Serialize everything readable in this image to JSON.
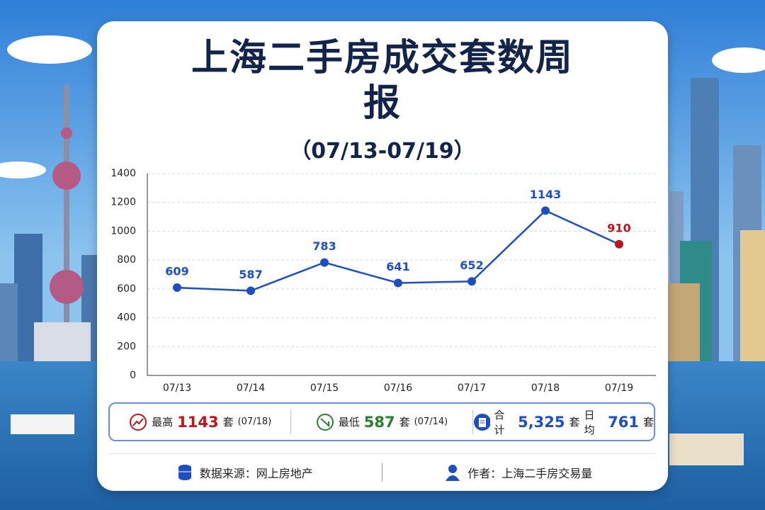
{
  "chart_data": {
    "type": "line",
    "title": "上海二手房成交套数周报",
    "subtitle": "（07/13-07/19）",
    "categories": [
      "07/13",
      "07/14",
      "07/15",
      "07/16",
      "07/17",
      "07/18",
      "07/19"
    ],
    "values": [
      609,
      587,
      783,
      641,
      652,
      1143,
      910
    ],
    "color": "#1f4fbf",
    "point_colors": [
      "#1f4fbf",
      "#1f4fbf",
      "#1f4fbf",
      "#1f4fbf",
      "#1f4fbf",
      "#1f4fbf",
      "#c0141c"
    ],
    "ylim": [
      0,
      1400
    ],
    "yticks": [
      0,
      200,
      400,
      600,
      800,
      1000,
      1200,
      1400
    ],
    "grid": true
  },
  "summary": [
    {
      "label": "最高",
      "value": "1143",
      "unit": "套",
      "note": "(07/18)",
      "color": "#c0141c"
    },
    {
      "label": "最低",
      "value": "587",
      "unit": "套",
      "note": "(07/14)",
      "color": "#2e7d32"
    },
    {
      "label": "合计",
      "value": "5,325",
      "unit": "套",
      "label2": "日均",
      "value2": "761",
      "unit2": "套",
      "color": "#1f4fbf"
    }
  ],
  "footer": {
    "source": "数据来源：网上房地产",
    "author": "作者：上海二手房交易量"
  }
}
